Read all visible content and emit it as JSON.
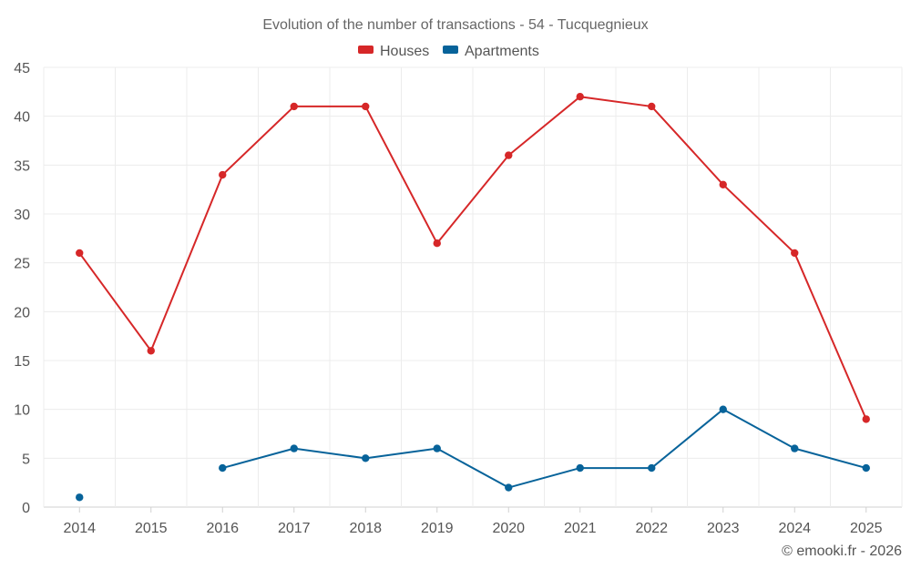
{
  "chart_data": {
    "type": "line",
    "title": "Evolution of the number of transactions - 54 - Tucquegnieux",
    "categories": [
      "2014",
      "2015",
      "2016",
      "2017",
      "2018",
      "2019",
      "2020",
      "2021",
      "2022",
      "2023",
      "2024",
      "2025"
    ],
    "ylim": [
      0,
      45
    ],
    "yticks": [
      0,
      5,
      10,
      15,
      20,
      25,
      30,
      35,
      40,
      45
    ],
    "xlabel": "",
    "ylabel": "",
    "grid": true,
    "legend_position": "top-center",
    "series": [
      {
        "name": "Houses",
        "color": "#d62728",
        "values": [
          26,
          16,
          34,
          41,
          41,
          27,
          36,
          42,
          41,
          33,
          26,
          9
        ]
      },
      {
        "name": "Apartments",
        "color": "#07639a",
        "values": [
          1,
          null,
          4,
          6,
          5,
          6,
          2,
          4,
          4,
          10,
          6,
          4
        ]
      }
    ]
  },
  "credit": "© emooki.fr - 2026"
}
